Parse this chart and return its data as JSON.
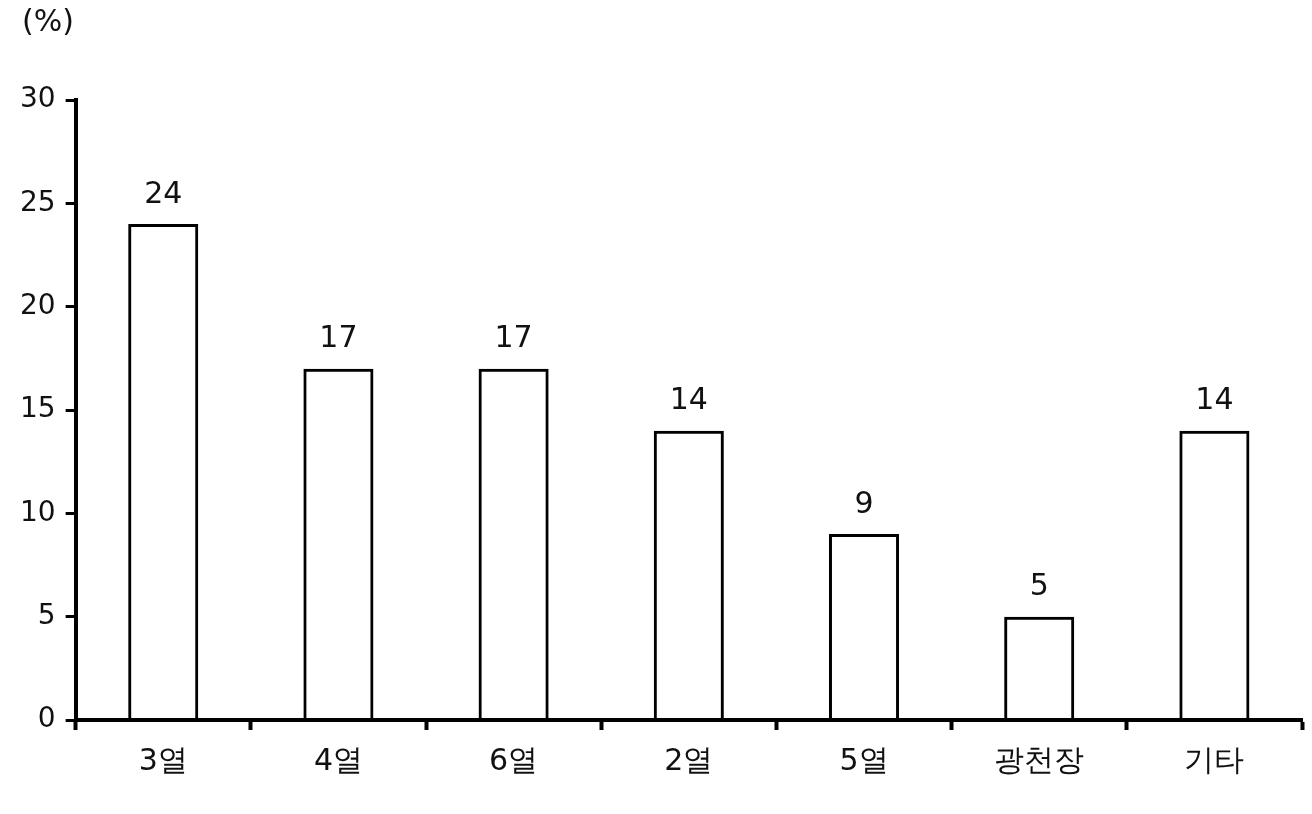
{
  "chart_data": {
    "type": "bar",
    "ylabel": "(%)",
    "categories": [
      "3열",
      "4열",
      "6열",
      "2열",
      "5열",
      "광천장",
      "기타"
    ],
    "values": [
      24,
      17,
      17,
      14,
      9,
      5,
      14
    ],
    "color": "#000000",
    "ylim": [
      0,
      30
    ],
    "yticks": [
      0,
      5,
      10,
      15,
      20,
      25,
      30
    ],
    "data_labels": true,
    "grid": false,
    "legend": false
  }
}
